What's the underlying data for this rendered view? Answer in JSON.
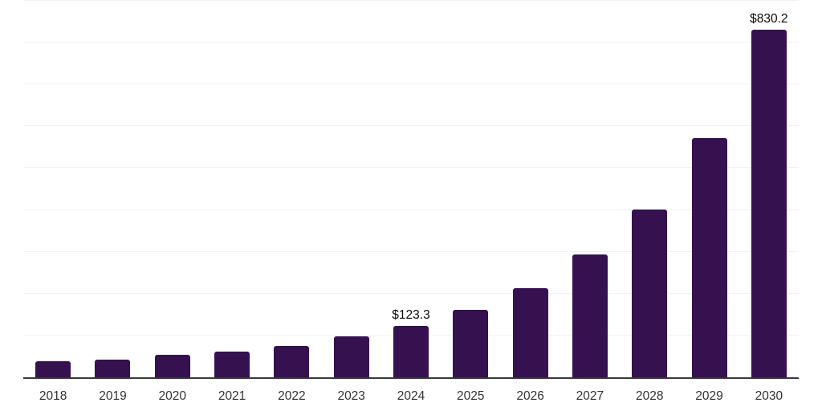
{
  "chart_data": {
    "type": "bar",
    "title": "",
    "xlabel": "",
    "ylabel": "",
    "categories": [
      "2018",
      "2019",
      "2020",
      "2021",
      "2022",
      "2023",
      "2024",
      "2025",
      "2026",
      "2027",
      "2028",
      "2029",
      "2030"
    ],
    "values": [
      38,
      43,
      53,
      62,
      75,
      98,
      123.3,
      161,
      213,
      293,
      402,
      572,
      830.2
    ],
    "data_labels": [
      {
        "category": "2024",
        "text": "$123.3"
      },
      {
        "category": "2030",
        "text": "$830.2"
      }
    ],
    "ylim": [
      0,
      902
    ],
    "grid_step": 100,
    "grid": true,
    "legend": false,
    "colors": {
      "bar": "#351150",
      "gridline": "#f1f1f1",
      "axis_line": "#3a3a3a",
      "tick_label": "#333333",
      "data_label": "#0a0a0a",
      "background": "#ffffff"
    }
  }
}
